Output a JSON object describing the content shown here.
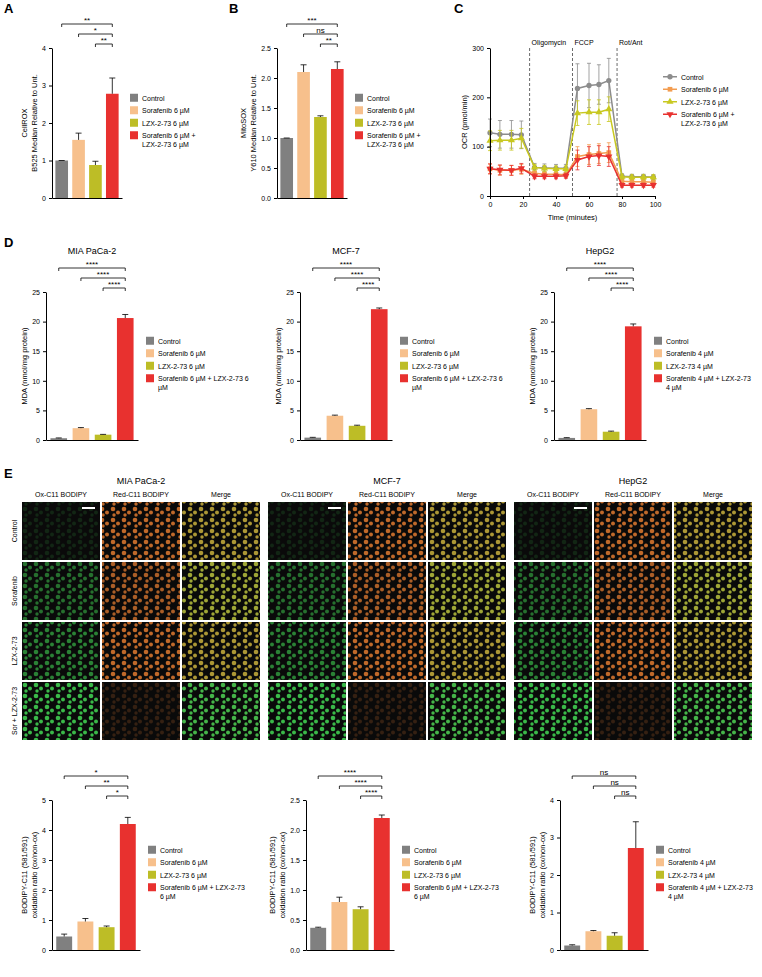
{
  "chart_data": [
    {
      "panel_label": "A",
      "type": "bar",
      "y_label": [
        "CellROX",
        "B525 Median Relative to Unt."
      ],
      "categories": [
        "Control",
        "Sorafenib 6 µM",
        "LZX-2-73 6 µM",
        "Sorafenib 6 µM + LZX-2-73 6 µM"
      ],
      "colors": [
        "#808080",
        "#f7c08c",
        "#bdbd26",
        "#e8312f"
      ],
      "values": [
        1,
        1.55,
        0.88,
        2.78
      ],
      "errors": [
        0,
        0.18,
        0.1,
        0.42
      ],
      "ylim": [
        0,
        4
      ],
      "yticks": [
        0,
        1,
        2,
        3,
        4
      ],
      "tick_labels": "y",
      "legend": "right",
      "annotations": [
        {
          "between": [
            "Control",
            "Sorafenib 6 µM + LZX-2-73 6 µM"
          ],
          "text": "**"
        },
        {
          "between": [
            "Sorafenib 6 µM",
            "Sorafenib 6 µM + LZX-2-73 6 µM"
          ],
          "text": "*"
        },
        {
          "between": [
            "LZX-2-73 6 µM",
            "Sorafenib 6 µM + LZX-2-73 6 µM"
          ],
          "text": "**"
        }
      ]
    },
    {
      "panel_label": "B",
      "type": "bar",
      "y_label": [
        "MitoSOX",
        "Y610 Median Relative to Unt."
      ],
      "categories": [
        "Control",
        "Sorafenib 6 µM",
        "LZX-2-73 6 µM",
        "Sorafenib 6 µM + LZX-2-73 6 µM"
      ],
      "colors": [
        "#808080",
        "#f7c08c",
        "#bdbd26",
        "#e8312f"
      ],
      "values": [
        1,
        2.1,
        1.35,
        2.15
      ],
      "errors": [
        0,
        0.12,
        0.02,
        0.12
      ],
      "ylim": [
        0,
        2.5
      ],
      "yticks": [
        {
          "value": 0,
          "label": "0.0"
        },
        {
          "value": 0.5,
          "label": "0.5"
        },
        {
          "value": 1,
          "label": "1.0"
        },
        {
          "value": 1.5,
          "label": "1.5"
        },
        {
          "value": 2,
          "label": "2.0"
        },
        {
          "value": 2.5,
          "label": "2.5"
        }
      ],
      "tick_labels": "y",
      "legend": "right",
      "annotations": [
        {
          "between": [
            "Control",
            "Sorafenib 6 µM + LZX-2-73 6 µM"
          ],
          "text": "***"
        },
        {
          "between": [
            "Sorafenib 6 µM",
            "Sorafenib 6 µM + LZX-2-73 6 µM"
          ],
          "text": "ns"
        },
        {
          "between": [
            "LZX-2-73 6 µM",
            "Sorafenib 6 µM + LZX-2-73 6 µM"
          ],
          "text": "**"
        }
      ]
    },
    {
      "panel_label": "C",
      "type": "line",
      "x_label": "Time (minutes)",
      "y_label": [
        "OCR (pmol/min)"
      ],
      "x": [
        0,
        6,
        13,
        19,
        27,
        33,
        40,
        46,
        53,
        60,
        66,
        72,
        80,
        86,
        93,
        99
      ],
      "xlim": [
        0,
        100
      ],
      "xticks": [
        0,
        20,
        40,
        60,
        80,
        100
      ],
      "ylim": [
        0,
        300
      ],
      "yticks": [
        0,
        100,
        200,
        300
      ],
      "legend": "right",
      "annotations": [
        {
          "x": 24,
          "text": "Oligomycin"
        },
        {
          "x": 50,
          "text": "FCCP"
        },
        {
          "x": 77,
          "text": "Rot/Ant"
        }
      ],
      "series": [
        {
          "name": "Control",
          "color": "#8c8c8c",
          "marker": "circle",
          "values": [
            128,
            125,
            125,
            124,
            58,
            57,
            56,
            56,
            218,
            224,
            226,
            234,
            40,
            39,
            39,
            38
          ],
          "errors": [
            28,
            28,
            28,
            28,
            8,
            8,
            8,
            8,
            50,
            45,
            40,
            45,
            5,
            5,
            5,
            5
          ]
        },
        {
          "name": "Sorafenib 6 µM",
          "color": "#f39c4f",
          "marker": "square",
          "values": [
            55,
            52,
            52,
            54,
            46,
            44,
            44,
            43,
            80,
            84,
            86,
            88,
            30,
            29,
            29,
            28
          ],
          "errors": [
            10,
            10,
            10,
            10,
            5,
            5,
            5,
            5,
            20,
            20,
            20,
            20,
            4,
            4,
            4,
            4
          ]
        },
        {
          "name": "LZX-2-73 6 µM",
          "color": "#c8c820",
          "marker": "triangle",
          "values": [
            112,
            113,
            113,
            117,
            58,
            56,
            55,
            55,
            168,
            170,
            170,
            176,
            39,
            38,
            38,
            38
          ],
          "errors": [
            20,
            20,
            20,
            20,
            6,
            6,
            6,
            6,
            25,
            25,
            25,
            25,
            5,
            5,
            5,
            5
          ]
        },
        {
          "name": "Sorafenib 6 µM + LZX-2-73 6 µM",
          "color": "#e8312f",
          "marker": "triangle-down",
          "values": [
            55,
            53,
            52,
            56,
            40,
            40,
            40,
            41,
            73,
            80,
            82,
            80,
            22,
            22,
            22,
            22
          ],
          "errors": [
            10,
            10,
            10,
            10,
            5,
            5,
            5,
            5,
            20,
            20,
            20,
            20,
            4,
            4,
            4,
            4
          ]
        }
      ]
    },
    {
      "panel_label": "D",
      "type": "bar",
      "title": "MIA PaCa-2",
      "y_label": [
        "MDA (nmol/mg protein)"
      ],
      "categories": [
        "Control",
        "Sorafenib 6 µM",
        "LZX-2-73 6 µM",
        "Sorafenib 6 µM + LZX-2-73 6 µM"
      ],
      "colors": [
        "#808080",
        "#f7c08c",
        "#bdbd26",
        "#e8312f"
      ],
      "values": [
        0.3,
        2.0,
        0.9,
        20.6
      ],
      "errors": [
        0.05,
        0.1,
        0.05,
        0.6
      ],
      "ylim": [
        0,
        25
      ],
      "yticks": [
        0,
        5,
        10,
        15,
        20,
        25
      ],
      "tick_labels": "y",
      "legend": "right",
      "annotations": [
        {
          "between": [
            "Control",
            "Sorafenib 6 µM + LZX-2-73 6 µM"
          ],
          "text": "****"
        },
        {
          "between": [
            "Sorafenib 6 µM",
            "Sorafenib 6 µM + LZX-2-73 6 µM"
          ],
          "text": "****"
        },
        {
          "between": [
            "LZX-2-73 6 µM",
            "Sorafenib 6 µM + LZX-2-73 6 µM"
          ],
          "text": "****"
        }
      ]
    },
    {
      "type": "bar",
      "title": "MCF-7",
      "y_label": [
        "MDA (nmol/mg protein)"
      ],
      "categories": [
        "Control",
        "Sorafenib 6 µM",
        "LZX-2-73 6 µM",
        "Sorafenib 6 µM + LZX-2-73 6 µM"
      ],
      "colors": [
        "#808080",
        "#f7c08c",
        "#bdbd26",
        "#e8312f"
      ],
      "values": [
        0.4,
        4.1,
        2.4,
        22.1
      ],
      "errors": [
        0.05,
        0.1,
        0.1,
        0.2
      ],
      "ylim": [
        0,
        25
      ],
      "yticks": [
        0,
        5,
        10,
        15,
        20,
        25
      ],
      "tick_labels": "y",
      "legend": "right",
      "annotations": [
        {
          "between": [
            "Control",
            "Sorafenib 6 µM + LZX-2-73 6 µM"
          ],
          "text": "****"
        },
        {
          "between": [
            "Sorafenib 6 µM",
            "Sorafenib 6 µM + LZX-2-73 6 µM"
          ],
          "text": "****"
        },
        {
          "between": [
            "LZX-2-73 6 µM",
            "Sorafenib 6 µM + LZX-2-73 6 µM"
          ],
          "text": "****"
        }
      ]
    },
    {
      "type": "bar",
      "title": "HepG2",
      "y_label": [
        "MDA (nmol/mg protein)"
      ],
      "categories": [
        "Control",
        "Sorafenib 4 µM",
        "LZX-2-73 4 µM",
        "Sorafenib 4 µM + LZX-2-73 4 µM"
      ],
      "colors": [
        "#808080",
        "#f7c08c",
        "#bdbd26",
        "#e8312f"
      ],
      "values": [
        0.35,
        5.2,
        1.4,
        19.2
      ],
      "errors": [
        0.05,
        0.1,
        0.1,
        0.4
      ],
      "ylim": [
        0,
        25
      ],
      "yticks": [
        0,
        5,
        10,
        15,
        20,
        25
      ],
      "tick_labels": "y",
      "legend": "right",
      "annotations": [
        {
          "between": [
            "Control",
            "Sorafenib 4 µM + LZX-2-73 4 µM"
          ],
          "text": "****"
        },
        {
          "between": [
            "Sorafenib 4 µM",
            "Sorafenib 4 µM + LZX-2-73 4 µM"
          ],
          "text": "****"
        },
        {
          "between": [
            "LZX-2-73 4 µM",
            "Sorafenib 4 µM + LZX-2-73 4 µM"
          ],
          "text": "****"
        }
      ]
    },
    {
      "type": "bar",
      "y_label": [
        "BODIPY-C11 (581/591)",
        "oxidation ratio (ox/non-ox)"
      ],
      "categories": [
        "Control",
        "Sorafenib 6 µM",
        "LZX-2-73 6 µM",
        "Sorafenib 6 µM + LZX-2-73 6 µM"
      ],
      "colors": [
        "#808080",
        "#f7c08c",
        "#bdbd26",
        "#e8312f"
      ],
      "values": [
        0.45,
        0.95,
        0.76,
        4.2
      ],
      "errors": [
        0.08,
        0.1,
        0.04,
        0.22
      ],
      "ylim": [
        0,
        5
      ],
      "yticks": [
        0,
        1,
        2,
        3,
        4,
        5
      ],
      "tick_labels": "y",
      "legend": "right",
      "annotations": [
        {
          "between": [
            "Control",
            "Sorafenib 6 µM + LZX-2-73 6 µM"
          ],
          "text": "*"
        },
        {
          "between": [
            "Sorafenib 6 µM",
            "Sorafenib 6 µM + LZX-2-73 6 µM"
          ],
          "text": "**"
        },
        {
          "between": [
            "LZX-2-73 6 µM",
            "Sorafenib 6 µM + LZX-2-73 6 µM"
          ],
          "text": "*"
        }
      ]
    },
    {
      "type": "bar",
      "y_label": [
        "BODIPY-C11 (581/591)",
        "oxidation ratio (ox/non-ox)"
      ],
      "categories": [
        "Control",
        "Sorafenib 6 µM",
        "LZX-2-73 6 µM",
        "Sorafenib 6 µM + LZX-2-73 6 µM"
      ],
      "colors": [
        "#808080",
        "#f7c08c",
        "#bdbd26",
        "#e8312f"
      ],
      "values": [
        0.37,
        0.8,
        0.68,
        2.2
      ],
      "errors": [
        0.01,
        0.08,
        0.04,
        0.05
      ],
      "ylim": [
        0,
        2.5
      ],
      "yticks": [
        {
          "value": 0,
          "label": "0.0"
        },
        {
          "value": 0.5,
          "label": "0.5"
        },
        {
          "value": 1,
          "label": "1.0"
        },
        {
          "value": 1.5,
          "label": "1.5"
        },
        {
          "value": 2,
          "label": "2.0"
        },
        {
          "value": 2.5,
          "label": "2.5"
        }
      ],
      "tick_labels": "y",
      "legend": "right",
      "annotations": [
        {
          "between": [
            "Control",
            "Sorafenib 6 µM + LZX-2-73 6 µM"
          ],
          "text": "****"
        },
        {
          "between": [
            "Sorafenib 6 µM",
            "Sorafenib 6 µM + LZX-2-73 6 µM"
          ],
          "text": "****"
        },
        {
          "between": [
            "LZX-2-73 6 µM",
            "Sorafenib 6 µM + LZX-2-73 6 µM"
          ],
          "text": "****"
        }
      ]
    },
    {
      "type": "bar",
      "y_label": [
        "BODIPY-C11 (581/591)",
        "oxidation ratio (ox/non-ox)"
      ],
      "categories": [
        "Control",
        "Sorafenib 4 µM",
        "LZX-2-73 4 µM",
        "Sorafenib 4 µM + LZX-2-73 4 µM"
      ],
      "colors": [
        "#808080",
        "#f7c08c",
        "#bdbd26",
        "#e8312f"
      ],
      "values": [
        0.12,
        0.5,
        0.38,
        2.72
      ],
      "errors": [
        0.02,
        0.02,
        0.08,
        0.7
      ],
      "ylim": [
        0,
        4
      ],
      "yticks": [
        0,
        1,
        2,
        3,
        4
      ],
      "tick_labels": "y",
      "legend": "right",
      "annotations": [
        {
          "between": [
            "Control",
            "Sorafenib 4 µM + LZX-2-73 4 µM"
          ],
          "text": "ns"
        },
        {
          "between": [
            "Sorafenib 4 µM",
            "Sorafenib 4 µM + LZX-2-73 4 µM"
          ],
          "text": "ns"
        },
        {
          "between": [
            "LZX-2-73 4 µM",
            "Sorafenib 4 µM + LZX-2-73 4 µM"
          ],
          "text": "ns"
        }
      ]
    }
  ],
  "micrographs": {
    "panel_label": "E",
    "groups": [
      "MIA PaCa-2",
      "MCF-7",
      "HepG2"
    ],
    "columns": [
      "Ox-C11 BODIPY",
      "Red-C11 BODIPY",
      "Merge"
    ],
    "rows": [
      "Control",
      "Sorafenib",
      "LZX-2-73",
      "Sor + LZX-2-73"
    ]
  }
}
